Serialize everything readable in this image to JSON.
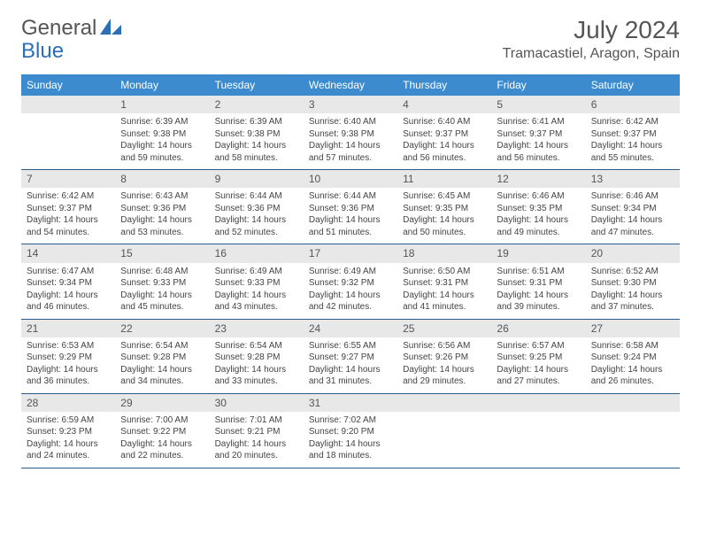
{
  "brand": {
    "part1": "General",
    "part2": "Blue"
  },
  "title": "July 2024",
  "location": "Tramacastiel, Aragon, Spain",
  "colors": {
    "header_bg": "#3b8bce",
    "header_text": "#ffffff",
    "daynum_bg": "#e8e8e8",
    "border": "#2c5a8a",
    "text": "#444444",
    "brand_gray": "#555555",
    "brand_blue": "#2c6fb5"
  },
  "weekdays": [
    "Sunday",
    "Monday",
    "Tuesday",
    "Wednesday",
    "Thursday",
    "Friday",
    "Saturday"
  ],
  "weeks": [
    [
      {
        "num": "",
        "lines": []
      },
      {
        "num": "1",
        "lines": [
          "Sunrise: 6:39 AM",
          "Sunset: 9:38 PM",
          "Daylight: 14 hours",
          "and 59 minutes."
        ]
      },
      {
        "num": "2",
        "lines": [
          "Sunrise: 6:39 AM",
          "Sunset: 9:38 PM",
          "Daylight: 14 hours",
          "and 58 minutes."
        ]
      },
      {
        "num": "3",
        "lines": [
          "Sunrise: 6:40 AM",
          "Sunset: 9:38 PM",
          "Daylight: 14 hours",
          "and 57 minutes."
        ]
      },
      {
        "num": "4",
        "lines": [
          "Sunrise: 6:40 AM",
          "Sunset: 9:37 PM",
          "Daylight: 14 hours",
          "and 56 minutes."
        ]
      },
      {
        "num": "5",
        "lines": [
          "Sunrise: 6:41 AM",
          "Sunset: 9:37 PM",
          "Daylight: 14 hours",
          "and 56 minutes."
        ]
      },
      {
        "num": "6",
        "lines": [
          "Sunrise: 6:42 AM",
          "Sunset: 9:37 PM",
          "Daylight: 14 hours",
          "and 55 minutes."
        ]
      }
    ],
    [
      {
        "num": "7",
        "lines": [
          "Sunrise: 6:42 AM",
          "Sunset: 9:37 PM",
          "Daylight: 14 hours",
          "and 54 minutes."
        ]
      },
      {
        "num": "8",
        "lines": [
          "Sunrise: 6:43 AM",
          "Sunset: 9:36 PM",
          "Daylight: 14 hours",
          "and 53 minutes."
        ]
      },
      {
        "num": "9",
        "lines": [
          "Sunrise: 6:44 AM",
          "Sunset: 9:36 PM",
          "Daylight: 14 hours",
          "and 52 minutes."
        ]
      },
      {
        "num": "10",
        "lines": [
          "Sunrise: 6:44 AM",
          "Sunset: 9:36 PM",
          "Daylight: 14 hours",
          "and 51 minutes."
        ]
      },
      {
        "num": "11",
        "lines": [
          "Sunrise: 6:45 AM",
          "Sunset: 9:35 PM",
          "Daylight: 14 hours",
          "and 50 minutes."
        ]
      },
      {
        "num": "12",
        "lines": [
          "Sunrise: 6:46 AM",
          "Sunset: 9:35 PM",
          "Daylight: 14 hours",
          "and 49 minutes."
        ]
      },
      {
        "num": "13",
        "lines": [
          "Sunrise: 6:46 AM",
          "Sunset: 9:34 PM",
          "Daylight: 14 hours",
          "and 47 minutes."
        ]
      }
    ],
    [
      {
        "num": "14",
        "lines": [
          "Sunrise: 6:47 AM",
          "Sunset: 9:34 PM",
          "Daylight: 14 hours",
          "and 46 minutes."
        ]
      },
      {
        "num": "15",
        "lines": [
          "Sunrise: 6:48 AM",
          "Sunset: 9:33 PM",
          "Daylight: 14 hours",
          "and 45 minutes."
        ]
      },
      {
        "num": "16",
        "lines": [
          "Sunrise: 6:49 AM",
          "Sunset: 9:33 PM",
          "Daylight: 14 hours",
          "and 43 minutes."
        ]
      },
      {
        "num": "17",
        "lines": [
          "Sunrise: 6:49 AM",
          "Sunset: 9:32 PM",
          "Daylight: 14 hours",
          "and 42 minutes."
        ]
      },
      {
        "num": "18",
        "lines": [
          "Sunrise: 6:50 AM",
          "Sunset: 9:31 PM",
          "Daylight: 14 hours",
          "and 41 minutes."
        ]
      },
      {
        "num": "19",
        "lines": [
          "Sunrise: 6:51 AM",
          "Sunset: 9:31 PM",
          "Daylight: 14 hours",
          "and 39 minutes."
        ]
      },
      {
        "num": "20",
        "lines": [
          "Sunrise: 6:52 AM",
          "Sunset: 9:30 PM",
          "Daylight: 14 hours",
          "and 37 minutes."
        ]
      }
    ],
    [
      {
        "num": "21",
        "lines": [
          "Sunrise: 6:53 AM",
          "Sunset: 9:29 PM",
          "Daylight: 14 hours",
          "and 36 minutes."
        ]
      },
      {
        "num": "22",
        "lines": [
          "Sunrise: 6:54 AM",
          "Sunset: 9:28 PM",
          "Daylight: 14 hours",
          "and 34 minutes."
        ]
      },
      {
        "num": "23",
        "lines": [
          "Sunrise: 6:54 AM",
          "Sunset: 9:28 PM",
          "Daylight: 14 hours",
          "and 33 minutes."
        ]
      },
      {
        "num": "24",
        "lines": [
          "Sunrise: 6:55 AM",
          "Sunset: 9:27 PM",
          "Daylight: 14 hours",
          "and 31 minutes."
        ]
      },
      {
        "num": "25",
        "lines": [
          "Sunrise: 6:56 AM",
          "Sunset: 9:26 PM",
          "Daylight: 14 hours",
          "and 29 minutes."
        ]
      },
      {
        "num": "26",
        "lines": [
          "Sunrise: 6:57 AM",
          "Sunset: 9:25 PM",
          "Daylight: 14 hours",
          "and 27 minutes."
        ]
      },
      {
        "num": "27",
        "lines": [
          "Sunrise: 6:58 AM",
          "Sunset: 9:24 PM",
          "Daylight: 14 hours",
          "and 26 minutes."
        ]
      }
    ],
    [
      {
        "num": "28",
        "lines": [
          "Sunrise: 6:59 AM",
          "Sunset: 9:23 PM",
          "Daylight: 14 hours",
          "and 24 minutes."
        ]
      },
      {
        "num": "29",
        "lines": [
          "Sunrise: 7:00 AM",
          "Sunset: 9:22 PM",
          "Daylight: 14 hours",
          "and 22 minutes."
        ]
      },
      {
        "num": "30",
        "lines": [
          "Sunrise: 7:01 AM",
          "Sunset: 9:21 PM",
          "Daylight: 14 hours",
          "and 20 minutes."
        ]
      },
      {
        "num": "31",
        "lines": [
          "Sunrise: 7:02 AM",
          "Sunset: 9:20 PM",
          "Daylight: 14 hours",
          "and 18 minutes."
        ]
      },
      {
        "num": "",
        "lines": []
      },
      {
        "num": "",
        "lines": []
      },
      {
        "num": "",
        "lines": []
      }
    ]
  ]
}
